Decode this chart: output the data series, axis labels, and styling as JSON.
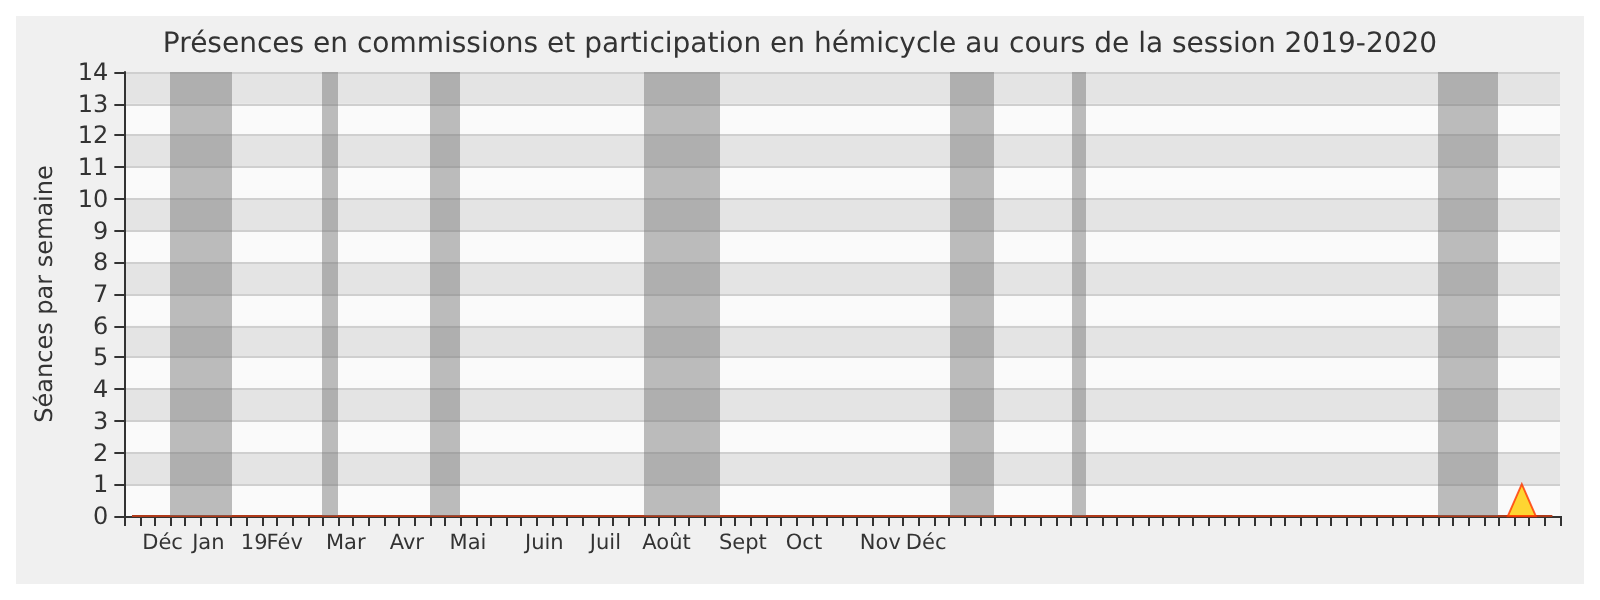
{
  "chart_data": {
    "type": "line",
    "title": "Présences en commissions et participation en hémicycle au cours de la session 2019-2020",
    "ylabel": "Séances par semaine",
    "ylim": [
      0,
      14
    ],
    "yticks": [
      0,
      1,
      2,
      3,
      4,
      5,
      6,
      7,
      8,
      9,
      10,
      11,
      12,
      13,
      14
    ],
    "categories": [
      null,
      null,
      "Déc",
      null,
      null,
      "Jan",
      null,
      null,
      "19",
      null,
      "Fév",
      null,
      null,
      null,
      "Mar",
      null,
      null,
      null,
      "Avr",
      null,
      null,
      null,
      "Mai",
      null,
      null,
      null,
      null,
      "Juin",
      null,
      null,
      null,
      "Juil",
      null,
      null,
      null,
      "Août",
      null,
      null,
      null,
      null,
      "Sept",
      null,
      null,
      null,
      "Oct",
      null,
      null,
      null,
      null,
      "Nov",
      null,
      null,
      "Déc",
      null,
      null,
      null,
      null,
      null,
      null,
      null,
      null,
      null,
      null,
      null,
      null,
      null,
      null,
      null,
      null,
      null,
      null,
      null,
      null,
      null,
      null,
      null,
      null,
      null,
      null,
      null,
      null,
      null,
      null,
      null,
      null,
      null,
      null,
      null,
      null,
      null,
      null,
      null,
      null,
      null
    ],
    "grid": "y",
    "series": [
      {
        "color": "#b03a1a",
        "marker": "none",
        "values": [
          0,
          0,
          0,
          0,
          0,
          0,
          0,
          0,
          0,
          0,
          0,
          0,
          0,
          0,
          0,
          0,
          0,
          0,
          0,
          0,
          0,
          0,
          0,
          0,
          0,
          0,
          0,
          0,
          0,
          0,
          0,
          0,
          0,
          0,
          0,
          0,
          0,
          0,
          0,
          0,
          0,
          0,
          0,
          0,
          0,
          0,
          0,
          0,
          0,
          0,
          0,
          0,
          0,
          0,
          0,
          0,
          0,
          0,
          0,
          0,
          0,
          0,
          0,
          0,
          0,
          0,
          0,
          0,
          0,
          0,
          0,
          0,
          0,
          0,
          0,
          0,
          0,
          0,
          0,
          0,
          0,
          0,
          0,
          0,
          0,
          0,
          0,
          0,
          0,
          0,
          0,
          0,
          0,
          0
        ]
      },
      {
        "type": "scatter",
        "color": "#ffcc00",
        "marker": "triangle",
        "values": [
          null,
          null,
          null,
          null,
          null,
          null,
          null,
          null,
          null,
          null,
          null,
          null,
          null,
          null,
          null,
          null,
          null,
          null,
          null,
          null,
          null,
          null,
          null,
          null,
          null,
          null,
          null,
          null,
          null,
          null,
          null,
          null,
          null,
          null,
          null,
          null,
          null,
          null,
          null,
          null,
          null,
          null,
          null,
          null,
          null,
          null,
          null,
          null,
          null,
          null,
          null,
          null,
          null,
          null,
          null,
          null,
          null,
          null,
          null,
          null,
          null,
          null,
          null,
          null,
          null,
          null,
          null,
          null,
          null,
          null,
          null,
          null,
          null,
          null,
          null,
          null,
          null,
          null,
          null,
          null,
          null,
          null,
          null,
          null,
          null,
          null,
          null,
          null,
          null,
          null,
          null,
          0.5,
          null,
          null
        ]
      }
    ]
  }
}
